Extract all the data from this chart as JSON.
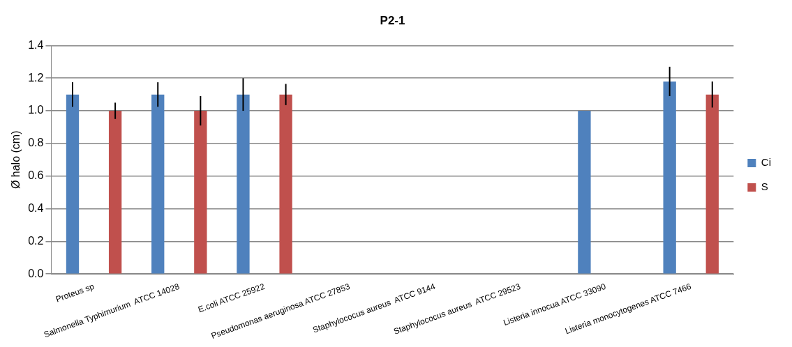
{
  "chart_data": {
    "type": "bar",
    "title": "P2-1",
    "ylabel": "Ø halo (cm)",
    "categories": [
      "Proteus sp",
      "Salmonella Typhimurium  ATCC 14028",
      "E.coli ATCC 25922",
      "Pseudomonas aeruginosa ATCC 27853",
      "Staphylococus aureus  ATCC 9144",
      "Staphylococus aureus  ATCC 29523",
      "Listeria innocua ATCC 33090",
      "Listeria monocytogenes ATCC 7466"
    ],
    "series": [
      {
        "name": "Ci",
        "color": "#4f81bd",
        "values": [
          1.1,
          1.1,
          1.1,
          null,
          null,
          null,
          1.0,
          1.18
        ],
        "errors": [
          0.075,
          0.075,
          0.1,
          null,
          null,
          null,
          null,
          0.09
        ]
      },
      {
        "name": "S",
        "color": "#c0504d",
        "values": [
          1.0,
          1.0,
          1.1,
          null,
          null,
          null,
          null,
          1.1
        ],
        "errors": [
          0.05,
          0.09,
          0.065,
          null,
          null,
          null,
          null,
          0.08
        ]
      }
    ],
    "ylim": [
      0,
      1.4
    ],
    "yticks": [
      {
        "value": 0,
        "label": "0.0"
      },
      {
        "value": 0.2,
        "label": "0.2"
      },
      {
        "value": 0.4,
        "label": "0.4"
      },
      {
        "value": 0.6,
        "label": "0.6"
      },
      {
        "value": 0.8,
        "label": "0.8"
      },
      {
        "value": 1,
        "label": "1.0"
      },
      {
        "value": 1.2,
        "label": "1.2"
      },
      {
        "value": 1.4,
        "label": "1.4"
      }
    ],
    "grid": "y",
    "legend": "right"
  }
}
